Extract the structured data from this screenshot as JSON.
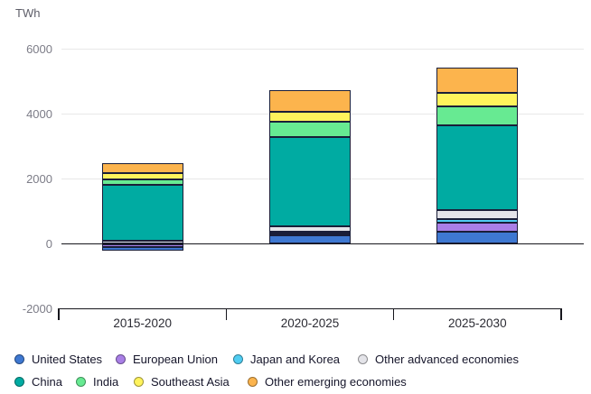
{
  "unit_label": "TWh",
  "chart_data": {
    "type": "bar",
    "stacked": true,
    "title": "",
    "ylabel": "TWh",
    "xlabel": "",
    "categories": [
      "2015-2020",
      "2020-2025",
      "2025-2030"
    ],
    "series": [
      {
        "name": "United States",
        "color": "#3e78d1",
        "values": [
          -110,
          270,
          385
        ]
      },
      {
        "name": "European Union",
        "color": "#a97fe6",
        "values": [
          -110,
          50,
          260
        ]
      },
      {
        "name": "Japan and Korea",
        "color": "#50cdf2",
        "values": [
          0,
          45,
          130
        ]
      },
      {
        "name": "Other advanced economies",
        "color": "#e4e4e9",
        "values": [
          110,
          180,
          260
        ]
      },
      {
        "name": "China",
        "color": "#00aba2",
        "values": [
          1700,
          2760,
          2620
        ]
      },
      {
        "name": "India",
        "color": "#67ea92",
        "values": [
          165,
          455,
          575
        ]
      },
      {
        "name": "Southeast Asia",
        "color": "#fff35c",
        "values": [
          195,
          300,
          415
        ]
      },
      {
        "name": "Other emerging economies",
        "color": "#fcb44d",
        "values": [
          330,
          690,
          785
        ]
      }
    ],
    "totals": [
      2500,
      4750,
      5430
    ],
    "negative_totals": [
      -220,
      0,
      0
    ],
    "ylim": [
      -2000,
      6000
    ],
    "yticks": [
      6000,
      4000,
      2000,
      0,
      -2000
    ],
    "ytick_labels": [
      "6000",
      "4000",
      "2000",
      "0",
      "-2000"
    ],
    "grid": true,
    "legend_position": "bottom",
    "legend_rows": [
      [
        "United States",
        "European Union",
        "Japan and Korea",
        "Other advanced economies"
      ],
      [
        "China",
        "India",
        "Southeast Asia",
        "Other emerging economies"
      ]
    ],
    "colors": {
      "grid": "#e8e8e8",
      "zero_line": "#16161d",
      "bracket": "#16161d",
      "tick_label": "#7c7c87",
      "category_label": "#2b2b33",
      "bar_border": "#1a1e38",
      "legend_text": "#15152a",
      "unit_label": "#5e5e69"
    }
  }
}
